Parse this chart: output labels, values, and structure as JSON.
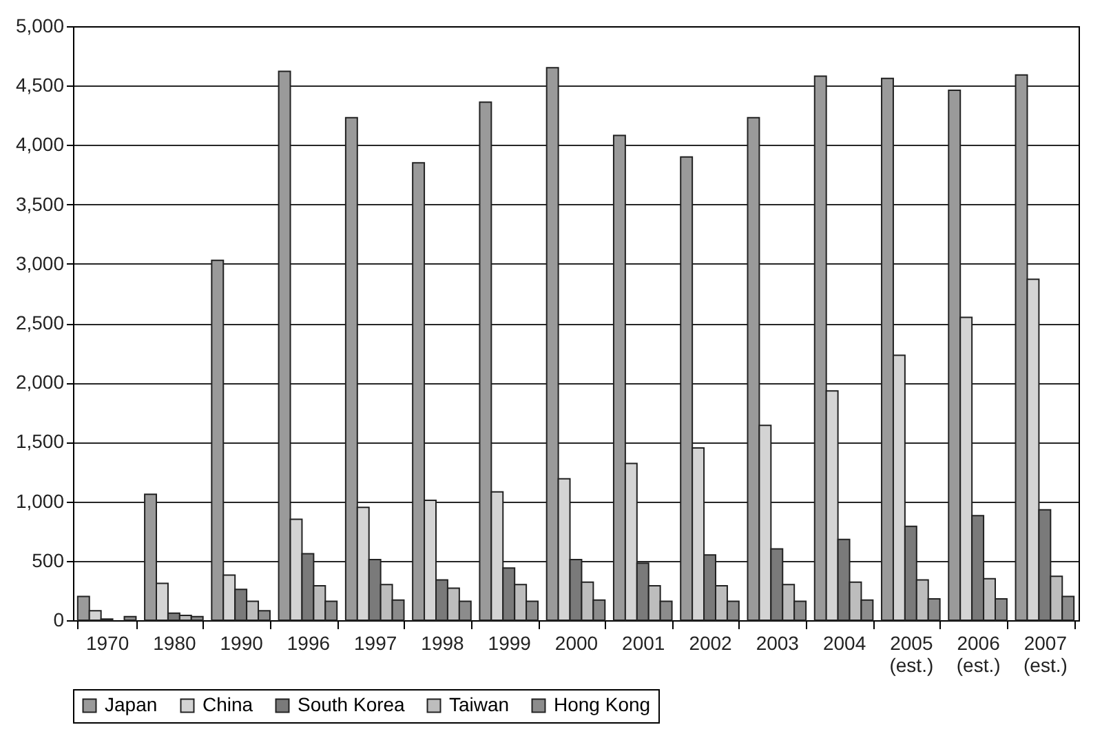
{
  "chart_data": {
    "type": "bar",
    "categories": [
      "1970",
      "1980",
      "1990",
      "1996",
      "1997",
      "1998",
      "1999",
      "2000",
      "2001",
      "2002",
      "2003",
      "2004",
      "2005 (est.)",
      "2006 (est.)",
      "2007 (est.)"
    ],
    "series": [
      {
        "name": "Japan",
        "color": "#9a9a9a",
        "values": [
          200,
          1060,
          3030,
          4620,
          4230,
          3850,
          4360,
          4650,
          4080,
          3900,
          4230,
          4580,
          4560,
          4460,
          4590
        ]
      },
      {
        "name": "China",
        "color": "#d4d4d4",
        "values": [
          80,
          310,
          380,
          850,
          950,
          1010,
          1080,
          1190,
          1320,
          1450,
          1640,
          1930,
          2230,
          2550,
          2870
        ]
      },
      {
        "name": "South Korea",
        "color": "#7a7a7a",
        "values": [
          10,
          60,
          260,
          560,
          510,
          340,
          440,
          510,
          480,
          550,
          600,
          680,
          790,
          880,
          930
        ]
      },
      {
        "name": "Taiwan",
        "color": "#bdbdbd",
        "values": [
          null,
          40,
          160,
          290,
          300,
          270,
          300,
          320,
          290,
          290,
          300,
          320,
          340,
          350,
          370
        ]
      },
      {
        "name": "Hong Kong",
        "color": "#8c8c8c",
        "values": [
          30,
          30,
          80,
          160,
          170,
          160,
          160,
          170,
          160,
          160,
          160,
          170,
          180,
          180,
          200
        ]
      }
    ],
    "ylim": [
      0,
      5000
    ],
    "yticks": [
      0,
      {
        "value": 500,
        "label": "500"
      },
      {
        "value": 1000,
        "label": "1,000"
      },
      {
        "value": 1500,
        "label": "1,500"
      },
      {
        "value": 2000,
        "label": "2,000"
      },
      {
        "value": 2500,
        "label": "2,500"
      },
      {
        "value": 3000,
        "label": "3,000"
      },
      {
        "value": 3500,
        "label": "3,500"
      },
      {
        "value": 4000,
        "label": "4,000"
      },
      {
        "value": 4500,
        "label": "4,500"
      },
      {
        "value": 5000,
        "label": "5,000"
      }
    ],
    "grid": "y",
    "legend": "bottom"
  }
}
